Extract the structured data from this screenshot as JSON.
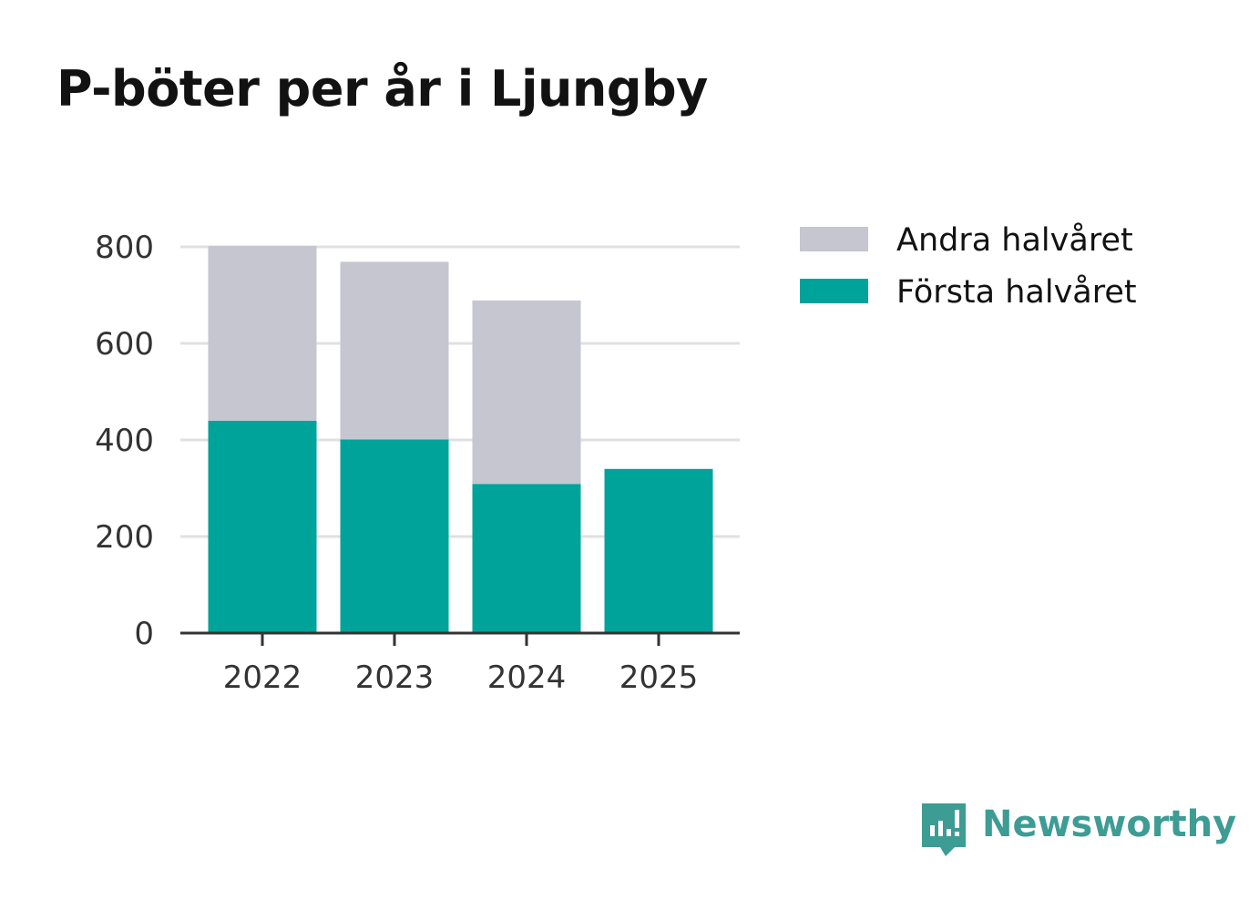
{
  "chart_data": {
    "type": "bar",
    "stacked": true,
    "title": "P-böter per år i Ljungby",
    "categories": [
      "2022",
      "2023",
      "2024",
      "2025"
    ],
    "series": [
      {
        "name": "Första halvåret",
        "color": "#00a39a",
        "values": [
          440,
          401,
          309,
          340
        ]
      },
      {
        "name": "Andra halvåret",
        "color": "#c6c6d0",
        "values": [
          362,
          368,
          380,
          0
        ]
      }
    ],
    "legend_order": [
      "Andra halvåret",
      "Första halvåret"
    ],
    "legend_position": "top-right",
    "y_ticks": [
      "0",
      "200",
      "400",
      "600",
      "800"
    ],
    "ylim": [
      0,
      800
    ],
    "xlabel": "",
    "ylabel": "",
    "grid": true
  },
  "branding": {
    "name": "Newsworthy",
    "color": "#3d9c94",
    "icon": "newsworthy-logo-icon"
  }
}
